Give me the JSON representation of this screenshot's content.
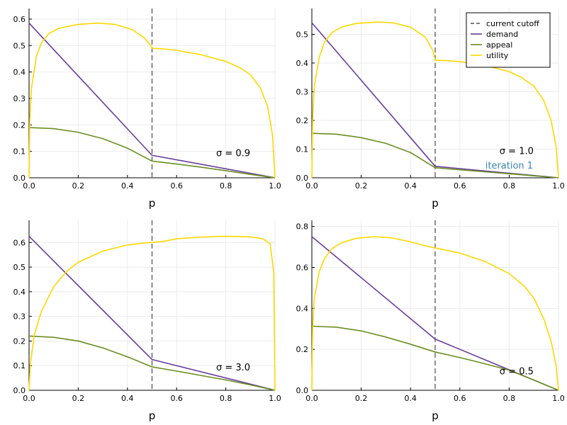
{
  "figure": {
    "legend": {
      "entries": [
        {
          "label": "current cutoff",
          "color": "#555555",
          "dash": true
        },
        {
          "label": "demand",
          "color": "#6a3d9a"
        },
        {
          "label": "appeal",
          "color": "#6b8e23"
        },
        {
          "label": "utility",
          "color": "#ffd700"
        }
      ]
    },
    "colors": {
      "cutoff": "#555555",
      "demand": "#6a3d9a",
      "appeal": "#6b8e23",
      "utility": "#ffd700",
      "annotation_blue": "#3a86b0"
    }
  },
  "chart_data": [
    {
      "type": "line",
      "xlabel": "p",
      "ylabel": "",
      "xlim": [
        0,
        1
      ],
      "ylim": [
        0,
        0.64
      ],
      "xticks": [
        "0.0",
        "0.2",
        "0.4",
        "0.6",
        "0.8",
        "1.0"
      ],
      "yticks": [
        "0.0",
        "0.1",
        "0.2",
        "0.3",
        "0.4",
        "0.5",
        "0.6"
      ],
      "grid": true,
      "cutoff_x": 0.5,
      "annotations": [
        {
          "text": "σ = 0.9",
          "x": 0.83,
          "y": 0.095
        }
      ],
      "series": [
        {
          "name": "demand",
          "x": [
            0,
            0.5,
            1.0
          ],
          "y": [
            0.585,
            0.085,
            0.0
          ]
        },
        {
          "name": "appeal",
          "x": [
            0,
            0.1,
            0.2,
            0.3,
            0.4,
            0.5,
            0.6,
            0.7,
            0.8,
            0.9,
            1.0
          ],
          "y": [
            0.19,
            0.186,
            0.172,
            0.148,
            0.112,
            0.063,
            0.052,
            0.04,
            0.027,
            0.013,
            0.0
          ]
        },
        {
          "name": "utility",
          "x": [
            0,
            0.003,
            0.01,
            0.03,
            0.05,
            0.08,
            0.12,
            0.2,
            0.28,
            0.35,
            0.42,
            0.47,
            0.499,
            0.5,
            0.55,
            0.6,
            0.7,
            0.8,
            0.86,
            0.9,
            0.94,
            0.97,
            0.99,
            1.0
          ],
          "y": [
            0,
            0.22,
            0.34,
            0.46,
            0.51,
            0.545,
            0.565,
            0.58,
            0.585,
            0.58,
            0.56,
            0.528,
            0.495,
            0.49,
            0.487,
            0.482,
            0.465,
            0.44,
            0.415,
            0.39,
            0.34,
            0.27,
            0.16,
            0.0
          ]
        }
      ]
    },
    {
      "type": "line",
      "xlabel": "p",
      "ylabel": "",
      "xlim": [
        0,
        1
      ],
      "ylim": [
        0,
        0.59
      ],
      "xticks": [
        "0.0",
        "0.2",
        "0.4",
        "0.6",
        "0.8",
        "1.0"
      ],
      "yticks": [
        "0.0",
        "0.1",
        "0.2",
        "0.3",
        "0.4",
        "0.5"
      ],
      "grid": true,
      "cutoff_x": 0.5,
      "legend": "top-right",
      "annotations": [
        {
          "text": "σ = 1.0",
          "x": 0.83,
          "y": 0.095
        },
        {
          "text": "iteration 1",
          "x": 0.8,
          "y": 0.045,
          "color": "#3a86b0"
        }
      ],
      "series": [
        {
          "name": "demand",
          "x": [
            0,
            0.5,
            1.0
          ],
          "y": [
            0.54,
            0.04,
            0.0
          ]
        },
        {
          "name": "appeal",
          "x": [
            0,
            0.1,
            0.2,
            0.3,
            0.4,
            0.5,
            0.6,
            0.7,
            0.8,
            0.9,
            1.0
          ],
          "y": [
            0.155,
            0.152,
            0.14,
            0.12,
            0.088,
            0.035,
            0.028,
            0.021,
            0.014,
            0.007,
            0.0
          ]
        },
        {
          "name": "utility",
          "x": [
            0,
            0.003,
            0.01,
            0.03,
            0.05,
            0.08,
            0.12,
            0.18,
            0.27,
            0.33,
            0.4,
            0.46,
            0.49,
            0.5,
            0.55,
            0.6,
            0.7,
            0.8,
            0.85,
            0.9,
            0.94,
            0.97,
            0.99,
            1.0
          ],
          "y": [
            0,
            0.2,
            0.32,
            0.42,
            0.47,
            0.505,
            0.525,
            0.538,
            0.543,
            0.54,
            0.525,
            0.49,
            0.445,
            0.41,
            0.408,
            0.405,
            0.392,
            0.37,
            0.35,
            0.32,
            0.27,
            0.2,
            0.11,
            0.0
          ]
        }
      ]
    },
    {
      "type": "line",
      "xlabel": "p",
      "ylabel": "",
      "xlim": [
        0,
        1
      ],
      "ylim": [
        0,
        0.69
      ],
      "xticks": [
        "0.0",
        "0.2",
        "0.4",
        "0.6",
        "0.8",
        "1.0"
      ],
      "yticks": [
        "0.0",
        "0.1",
        "0.2",
        "0.3",
        "0.4",
        "0.5",
        "0.6"
      ],
      "grid": true,
      "cutoff_x": 0.5,
      "annotations": [
        {
          "text": "σ = 3.0",
          "x": 0.83,
          "y": 0.095
        }
      ],
      "series": [
        {
          "name": "demand",
          "x": [
            0,
            0.5,
            1.0
          ],
          "y": [
            0.625,
            0.125,
            0.0
          ]
        },
        {
          "name": "appeal",
          "x": [
            0,
            0.1,
            0.2,
            0.3,
            0.4,
            0.5,
            0.6,
            0.7,
            0.8,
            0.9,
            1.0
          ],
          "y": [
            0.22,
            0.215,
            0.2,
            0.172,
            0.136,
            0.095,
            0.078,
            0.06,
            0.042,
            0.022,
            0.0
          ]
        },
        {
          "name": "utility",
          "x": [
            0,
            0.005,
            0.02,
            0.05,
            0.1,
            0.15,
            0.2,
            0.3,
            0.4,
            0.49,
            0.5,
            0.55,
            0.6,
            0.7,
            0.8,
            0.9,
            0.95,
            0.98,
            0.995,
            1.0
          ],
          "y": [
            0,
            0.1,
            0.22,
            0.32,
            0.42,
            0.48,
            0.52,
            0.565,
            0.59,
            0.6,
            0.6,
            0.605,
            0.615,
            0.622,
            0.625,
            0.623,
            0.615,
            0.595,
            0.48,
            0.0
          ]
        }
      ]
    },
    {
      "type": "line",
      "xlabel": "p",
      "ylabel": "",
      "xlim": [
        0,
        1
      ],
      "ylim": [
        0,
        0.83
      ],
      "xticks": [
        "0.0",
        "0.2",
        "0.4",
        "0.6",
        "0.8",
        "1.0"
      ],
      "yticks": [
        "0.0",
        "0.2",
        "0.4",
        "0.6",
        "0.8"
      ],
      "grid": true,
      "cutoff_x": 0.5,
      "annotations": [
        {
          "text": "σ = 0.5",
          "x": 0.83,
          "y": 0.095
        }
      ],
      "series": [
        {
          "name": "demand",
          "x": [
            0,
            0.5,
            1.0
          ],
          "y": [
            0.75,
            0.25,
            0.0
          ]
        },
        {
          "name": "appeal",
          "x": [
            0,
            0.1,
            0.2,
            0.3,
            0.4,
            0.5,
            0.6,
            0.7,
            0.8,
            0.9,
            1.0
          ],
          "y": [
            0.313,
            0.308,
            0.29,
            0.26,
            0.225,
            0.187,
            0.16,
            0.13,
            0.098,
            0.05,
            0.0
          ]
        },
        {
          "name": "utility",
          "x": [
            0,
            0.003,
            0.01,
            0.03,
            0.05,
            0.08,
            0.12,
            0.18,
            0.25,
            0.32,
            0.4,
            0.46,
            0.5,
            0.6,
            0.7,
            0.8,
            0.86,
            0.9,
            0.94,
            0.97,
            0.99,
            1.0
          ],
          "y": [
            0,
            0.3,
            0.45,
            0.58,
            0.64,
            0.69,
            0.72,
            0.742,
            0.75,
            0.745,
            0.725,
            0.705,
            0.695,
            0.67,
            0.63,
            0.57,
            0.51,
            0.45,
            0.35,
            0.24,
            0.12,
            0.0
          ]
        }
      ]
    }
  ]
}
